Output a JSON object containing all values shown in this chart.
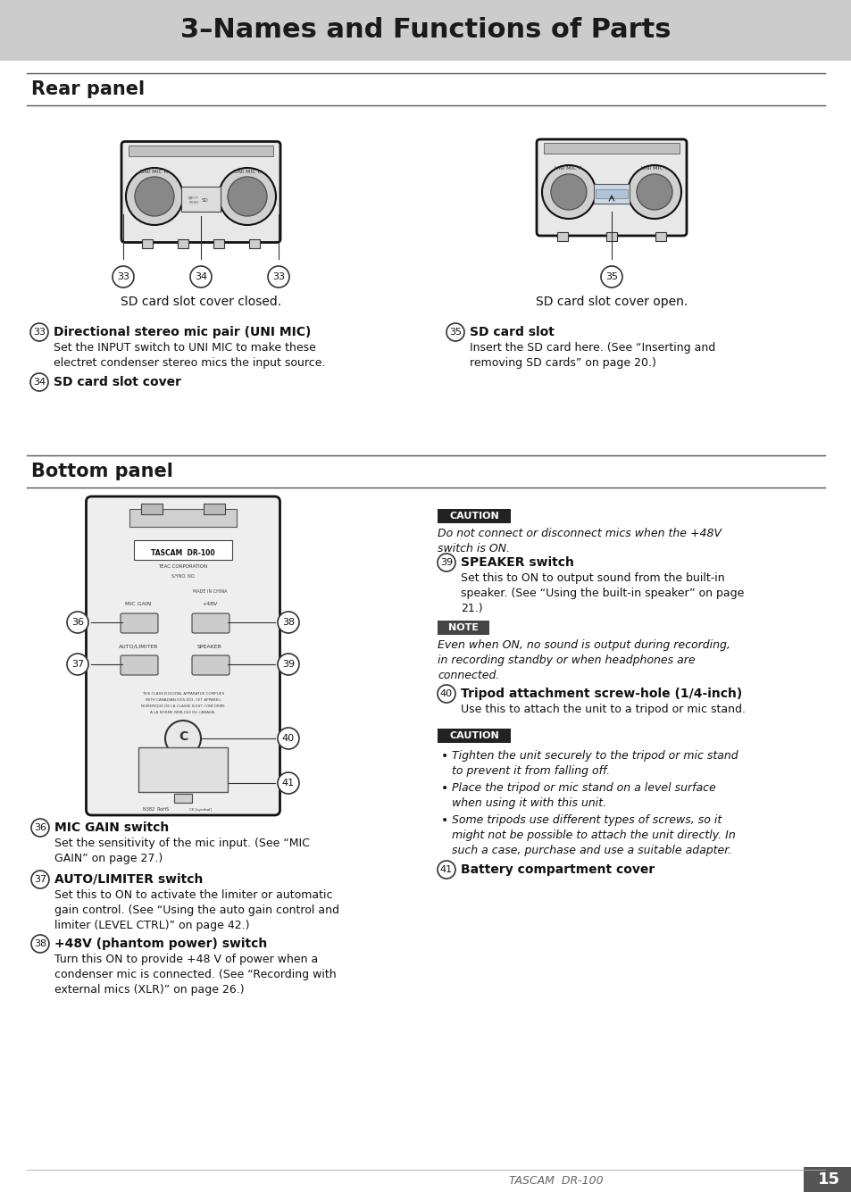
{
  "title": "3–Names and Functions of Parts",
  "title_bg": "#cccccc",
  "page_bg": "#ffffff",
  "section1": "Rear panel",
  "section2": "Bottom panel",
  "caption1": "SD card slot cover closed.",
  "caption2": "SD card slot cover open.",
  "items_rear": [
    {
      "num": "33",
      "bold": "Directional stereo mic pair (UNI MIC)",
      "text": "Set the INPUT switch to UNI MIC to make these\nelectret condenser stereo mics the input source."
    },
    {
      "num": "34",
      "bold": "SD card slot cover",
      "text": ""
    },
    {
      "num": "35",
      "bold": "SD card slot",
      "text": "Insert the SD card here. (See “Inserting and\nremoving SD cards” on page 20.)"
    }
  ],
  "items_bottom_left": [
    {
      "num": "36",
      "bold": "MIC GAIN switch",
      "text": "Set the sensitivity of the mic input. (See “MIC\nGAIN” on page 27.)"
    },
    {
      "num": "37",
      "bold": "AUTO/LIMITER switch",
      "text": "Set this to ON to activate the limiter or automatic\ngain control. (See “Using the auto gain control and\nlimiter (LEVEL CTRL)” on page 42.)"
    },
    {
      "num": "38",
      "bold": "+48V (phantom power) switch",
      "text": "Turn this ON to provide +48 V of power when a\ncondenser mic is connected. (See “Recording with\nexternal mics (XLR)” on page 26.)"
    }
  ],
  "items_bottom_right": [
    {
      "num": "39",
      "bold": "SPEAKER switch",
      "text": "Set this to ON to output sound from the built-in\nspeaker. (See “Using the built-in speaker” on page\n21.)"
    },
    {
      "num": "40",
      "bold": "Tripod attachment screw-hole (1/4-inch)",
      "text": "Use this to attach the unit to a tripod or mic stand."
    },
    {
      "num": "41",
      "bold": "Battery compartment cover",
      "text": ""
    }
  ],
  "caution1": "CAUTION",
  "caution1_text": "Do not connect or disconnect mics when the +48V\nswitch is ON.",
  "note1": "NOTE",
  "note1_text": "Even when ON, no sound is output during recording,\nin recording standby or when headphones are\nconnected.",
  "caution2": "CAUTION",
  "caution2_bullets": [
    "Tighten the unit securely to the tripod or mic stand\nto prevent it from falling off.",
    "Place the tripod or mic stand on a level surface\nwhen using it with this unit.",
    "Some tripods use different types of screws, so it\nmight not be possible to attach the unit directly. In\nsuch a case, purchase and use a suitable adapter."
  ],
  "footer": "TASCAM  DR-100",
  "page_num": "15"
}
